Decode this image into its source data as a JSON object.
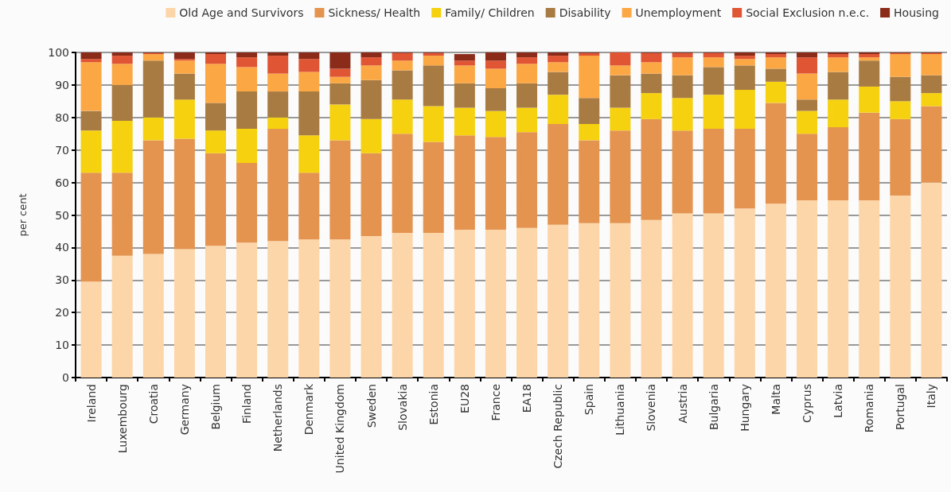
{
  "chart_data": {
    "type": "bar",
    "stacked": true,
    "ylabel": "per cent",
    "categories": [
      "Ireland",
      "Luxembourg",
      "Croatia",
      "Germany",
      "Belgium",
      "Finland",
      "Netherlands",
      "Denmark",
      "United Kingdom",
      "Sweden",
      "Slovakia",
      "Estonia",
      "EU28",
      "France",
      "EA18",
      "Czech Republic",
      "Spain",
      "Lithuania",
      "Slovenia",
      "Austria",
      "Bulgaria",
      "Hungary",
      "Malta",
      "Cyprus",
      "Latvia",
      "Romania",
      "Portugal",
      "Italy"
    ],
    "series": [
      {
        "name": "Old Age and Survivors",
        "color": "#fcd5a8",
        "values": [
          29.5,
          37.5,
          38,
          39.5,
          40.5,
          41.5,
          42,
          42.5,
          42.5,
          43.5,
          44.5,
          44.5,
          45.5,
          45.5,
          46,
          47,
          47.5,
          47.5,
          48.5,
          50.5,
          50.5,
          52,
          53.5,
          54.5,
          54.5,
          54.5,
          56,
          60
        ]
      },
      {
        "name": "Sickness/ Health",
        "color": "#e4944f",
        "values": [
          33.5,
          25.5,
          35,
          34,
          28.5,
          24.5,
          34.5,
          20.5,
          30.5,
          25.5,
          30.5,
          28,
          29,
          28.5,
          29.5,
          31,
          25.5,
          28.5,
          31,
          25.5,
          26,
          24.5,
          31,
          20.5,
          22.5,
          27,
          23.5,
          23.5
        ]
      },
      {
        "name": "Family/ Children",
        "color": "#f5d10f",
        "values": [
          13,
          16,
          7,
          12,
          7,
          10.5,
          3.5,
          11.5,
          11,
          10.5,
          10.5,
          11,
          8.5,
          8,
          7.5,
          9,
          5,
          7,
          8,
          10,
          10.5,
          12,
          6.5,
          7,
          8.5,
          8,
          5.5,
          4
        ]
      },
      {
        "name": "Disability",
        "color": "#a87b42",
        "values": [
          6,
          11,
          17.5,
          8,
          8.5,
          11.5,
          8,
          13.5,
          6.5,
          12,
          9,
          12.5,
          7.5,
          7,
          7.5,
          7,
          8,
          10,
          6,
          7,
          8.5,
          7.5,
          4,
          3.5,
          8.5,
          8,
          7.5,
          5.5
        ]
      },
      {
        "name": "Unemployment",
        "color": "#fba844",
        "values": [
          15,
          6.5,
          2,
          4,
          12,
          7.5,
          5.5,
          6,
          2,
          4.5,
          3,
          3,
          5.5,
          6,
          6,
          3,
          13,
          3,
          3.5,
          5.5,
          3,
          2,
          3.5,
          8,
          4.5,
          1,
          7,
          6.5
        ]
      },
      {
        "name": "Social Exclusion n.e.c.",
        "color": "#e05533",
        "values": [
          1,
          2.5,
          0.3,
          0.5,
          3,
          3,
          5.5,
          4,
          2.5,
          2.5,
          2.3,
          0.8,
          1.5,
          2.5,
          2,
          2,
          0.8,
          4,
          2.8,
          1.3,
          1.3,
          1,
          1,
          5,
          1,
          1,
          0.3,
          0.3
        ]
      },
      {
        "name": "Housing",
        "color": "#8b2c1a",
        "values": [
          2,
          1,
          0.2,
          2,
          0.5,
          1.5,
          1,
          2,
          5,
          1.5,
          0.2,
          0.2,
          2,
          2.5,
          1.5,
          1,
          0.2,
          0,
          0.2,
          0.2,
          0.2,
          1,
          0.5,
          1.5,
          0.5,
          0.5,
          0.2,
          0.2
        ]
      }
    ],
    "ylim": [
      0,
      100
    ],
    "yticks": [
      0,
      10,
      20,
      30,
      40,
      50,
      60,
      70,
      80,
      90,
      100
    ],
    "grid": "y",
    "legend": "top right"
  }
}
